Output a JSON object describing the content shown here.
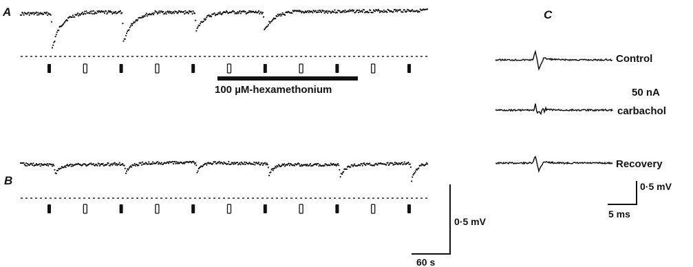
{
  "panels": {
    "a": "A",
    "b": "B",
    "c": "C"
  },
  "drug_bar_label": "100 µM-hexamethonium",
  "scale_bar_ab": {
    "voltage": "0·5 mV",
    "time": "60 s"
  },
  "scale_bar_c": {
    "voltage": "0·5 mV",
    "time": "5 ms"
  },
  "panel_c": {
    "labels": {
      "control": "Control",
      "carbachol_line1": "50 nA",
      "carbachol_line2": "carbachol",
      "recovery": "Recovery"
    }
  },
  "stimulus_markers": {
    "row_a": [
      "filled",
      "open",
      "filled",
      "open",
      "filled",
      "open",
      "filled",
      "open",
      "filled",
      "open",
      "filled"
    ],
    "row_b": [
      "filled",
      "open",
      "filled",
      "open",
      "filled",
      "open",
      "filled",
      "open",
      "filled",
      "open",
      "filled"
    ]
  },
  "trace_a_dip_relative_amplitudes": [
    1.0,
    0.9,
    0.55,
    0.55
  ],
  "trace_b_dip_relative_amplitudes": [
    0.35,
    0.35,
    0.35,
    0.4,
    0.45,
    0.65
  ]
}
